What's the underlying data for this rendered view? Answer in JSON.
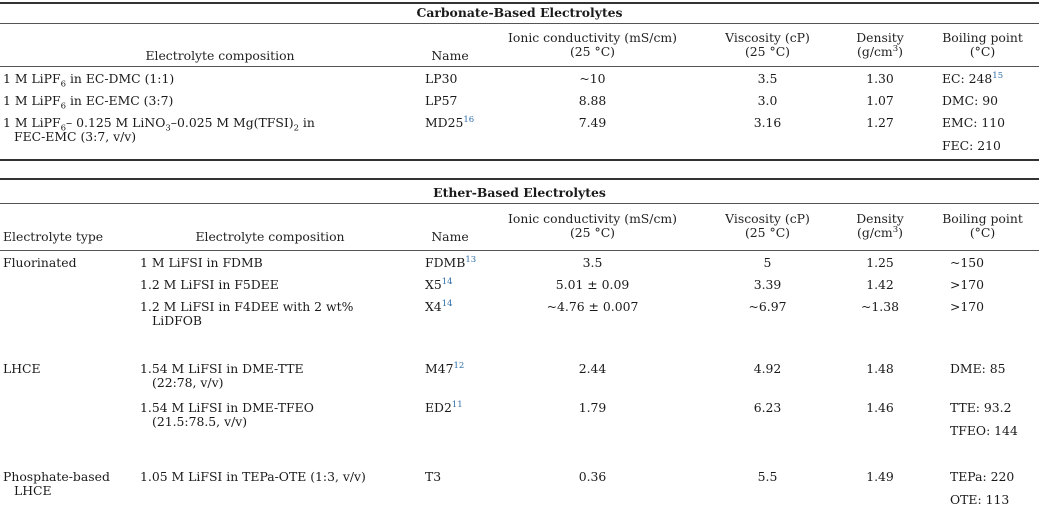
{
  "carbonate": {
    "title": "Carbonate-Based Electrolytes",
    "headers": {
      "composition": "Electrolyte composition",
      "name": "Name",
      "conductivity_1": "Ionic conductivity (mS/cm)",
      "conductivity_2": "(25 °C)",
      "viscosity_1": "Viscosity (cP)",
      "viscosity_2": "(25 °C)",
      "density_1": "Density",
      "density_2": "(g/cm",
      "density_sup": "3",
      "density_3": ")",
      "bp_1": "Boiling point",
      "bp_2": "(°C)"
    },
    "rows": [
      {
        "comp_a": "1 M LiPF",
        "comp_sub": "6",
        "comp_b": " in EC-DMC (1:1)",
        "name": "LP30",
        "name_ref": "",
        "cond": "~10",
        "visc": "3.5",
        "dens": "1.30",
        "bp": "EC: 248",
        "bp_ref": "15"
      },
      {
        "comp_a": "1 M LiPF",
        "comp_sub": "6",
        "comp_b": " in EC-EMC (3:7)",
        "name": "LP57",
        "name_ref": "",
        "cond": "8.88",
        "visc": "3.0",
        "dens": "1.07",
        "bp": "DMC: 90",
        "bp_ref": ""
      }
    ],
    "row3": {
      "c1": "1 M LiPF",
      "s1": "6",
      "c2": "– 0.125 M LiNO",
      "s2": "3",
      "c3": "–0.025 M Mg(TFSI)",
      "s3": "2",
      "c4": " in",
      "line2": "FEC-EMC (3:7, v/v)",
      "name": "MD25",
      "name_ref": "16",
      "cond": "7.49",
      "visc": "3.16",
      "dens": "1.27",
      "bp": "EMC: 110",
      "bp2": "FEC: 210"
    }
  },
  "ether": {
    "title": "Ether-Based Electrolytes",
    "headers": {
      "type": "Electrolyte type",
      "composition": "Electrolyte composition",
      "name": "Name",
      "conductivity_1": "Ionic conductivity (mS/cm)",
      "conductivity_2": "(25 °C)",
      "viscosity_1": "Viscosity (cP)",
      "viscosity_2": "(25 °C)",
      "density_1": "Density",
      "density_2": "(g/cm",
      "density_sup": "3",
      "density_3": ")",
      "bp_1": "Boiling point",
      "bp_2": "(°C)"
    },
    "rows": [
      {
        "type": "Fluorinated",
        "comp1": "1 M LiFSI in FDMB",
        "comp2": "",
        "name": "FDMB",
        "ref": "13",
        "cond": "3.5",
        "visc": "5",
        "dens": "1.25",
        "bp1": "~150",
        "bp2": ""
      },
      {
        "type": "",
        "comp1": "1.2 M LiFSI in F5DEE",
        "comp2": "",
        "name": "X5",
        "ref": "14",
        "cond": "5.01 ± 0.09",
        "visc": "3.39",
        "dens": "1.42",
        "bp1": ">170",
        "bp2": ""
      },
      {
        "type": "",
        "comp1": "1.2 M LiFSI in F4DEE with 2 wt%",
        "comp2": "LiDFOB",
        "name": "X4",
        "ref": "14",
        "cond": "~4.76 ± 0.007",
        "visc": "~6.97",
        "dens": "~1.38",
        "bp1": ">170",
        "bp2": ""
      },
      {
        "type": "LHCE",
        "comp1": "1.54 M LiFSI in DME-TTE",
        "comp2": "(22:78, v/v)",
        "name": "M47",
        "ref": "12",
        "cond": "2.44",
        "visc": "4.92",
        "dens": "1.48",
        "bp1": "DME: 85",
        "bp2": ""
      },
      {
        "type": "",
        "comp1": "1.54 M LiFSI in DME-TFEO",
        "comp2": "(21.5:78.5, v/v)",
        "name": "ED2",
        "ref": "11",
        "cond": "1.79",
        "visc": "6.23",
        "dens": "1.46",
        "bp1": "TTE: 93.2",
        "bp2": "TFEO: 144"
      },
      {
        "type": "Phosphate-based",
        "type2": "LHCE",
        "comp1": "1.05 M LiFSI in TEPa-OTE (1:3, v/v)",
        "comp2": "",
        "name": "T3",
        "ref": "",
        "cond": "0.36",
        "visc": "5.5",
        "dens": "1.49",
        "bp1": "TEPa: 220",
        "bp2": "OTE: 113"
      }
    ]
  }
}
